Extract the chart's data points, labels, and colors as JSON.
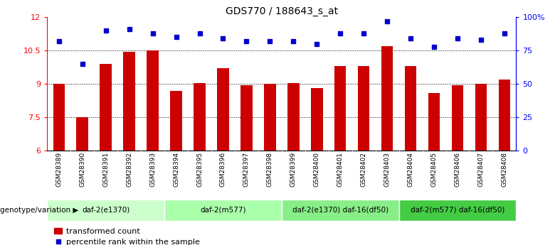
{
  "title": "GDS770 / 188643_s_at",
  "samples": [
    "GSM28389",
    "GSM28390",
    "GSM28391",
    "GSM28392",
    "GSM28393",
    "GSM28394",
    "GSM28395",
    "GSM28396",
    "GSM28397",
    "GSM28398",
    "GSM28399",
    "GSM28400",
    "GSM28401",
    "GSM28402",
    "GSM28403",
    "GSM28404",
    "GSM28405",
    "GSM28406",
    "GSM28407",
    "GSM28408"
  ],
  "bar_values": [
    9.0,
    7.5,
    9.9,
    10.45,
    10.5,
    8.7,
    9.05,
    9.7,
    8.95,
    9.0,
    9.05,
    8.8,
    9.8,
    9.8,
    10.7,
    9.8,
    8.6,
    8.95,
    9.0,
    9.2
  ],
  "pct_values": [
    82,
    65,
    90,
    91,
    88,
    85,
    88,
    84,
    82,
    82,
    82,
    80,
    88,
    88,
    97,
    84,
    78,
    84,
    83,
    88
  ],
  "ylim_left": [
    6,
    12
  ],
  "ylim_right": [
    0,
    100
  ],
  "yticks_left": [
    6,
    7.5,
    9,
    10.5,
    12
  ],
  "yticks_right": [
    0,
    25,
    50,
    75,
    100
  ],
  "ytick_labels_left": [
    "6",
    "7.5",
    "9",
    "10.5",
    "12"
  ],
  "ytick_labels_right": [
    "0",
    "25",
    "50",
    "75",
    "100%"
  ],
  "bar_color": "#cc0000",
  "dot_color": "#0000cc",
  "groups": [
    {
      "label": "daf-2(e1370)",
      "start": 0,
      "end": 5,
      "color": "#ccffcc"
    },
    {
      "label": "daf-2(m577)",
      "start": 5,
      "end": 10,
      "color": "#aaffaa"
    },
    {
      "label": "daf-2(e1370) daf-16(df50)",
      "start": 10,
      "end": 15,
      "color": "#88ee88"
    },
    {
      "label": "daf-2(m577) daf-16(df50)",
      "start": 15,
      "end": 20,
      "color": "#44cc44"
    }
  ],
  "sample_row_color": "#cccccc",
  "legend_bar_label": "transformed count",
  "legend_dot_label": "percentile rank within the sample",
  "genotype_label": "genotype/variation"
}
